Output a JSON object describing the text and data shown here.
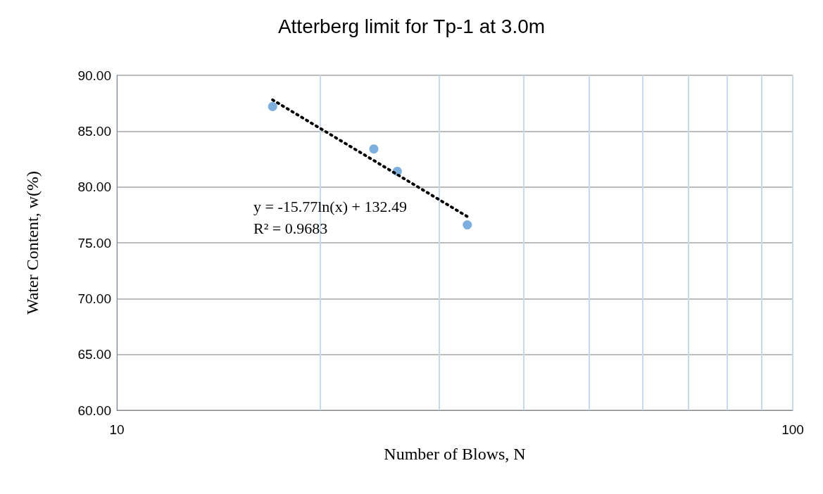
{
  "chart_data": {
    "type": "scatter",
    "title": "Atterberg limit for Tp-1 at 3.0m",
    "xlabel": "Number of Blows, N",
    "ylabel": "Water Content, w(%)",
    "log": "x",
    "grid": true,
    "marker": "circle",
    "xlim": [
      10,
      100
    ],
    "xticks": [
      10,
      {
        "value": 20,
        "label": null
      },
      {
        "value": 30,
        "label": null
      },
      {
        "value": 40,
        "label": null
      },
      {
        "value": 50,
        "label": null
      },
      {
        "value": 60,
        "label": null
      },
      {
        "value": 70,
        "label": null
      },
      {
        "value": 80,
        "label": null
      },
      {
        "value": 90,
        "label": null
      },
      100
    ],
    "ylim": [
      60,
      90
    ],
    "yticks": [
      {
        "value": 60,
        "label": "60.00"
      },
      {
        "value": 65,
        "label": "65.00"
      },
      {
        "value": 70,
        "label": "70.00"
      },
      {
        "value": 75,
        "label": "75.00"
      },
      {
        "value": 80,
        "label": "80.00"
      },
      {
        "value": 85,
        "label": "85.00"
      },
      {
        "value": 90,
        "label": "90.00"
      }
    ],
    "series": [
      {
        "color": "#5b9bd5",
        "x": [
          17,
          24,
          26,
          33
        ],
        "values": [
          87.2,
          83.4,
          81.4,
          76.6
        ]
      },
      {
        "type": "line",
        "color": "#000000",
        "line_style": "dotted",
        "marker": "none",
        "x": [
          17,
          33
        ],
        "values": [
          87.8,
          77.35
        ]
      }
    ],
    "annotations": [
      "y = -15.77ln(x) + 132.49",
      "R² = 0.9683"
    ]
  }
}
